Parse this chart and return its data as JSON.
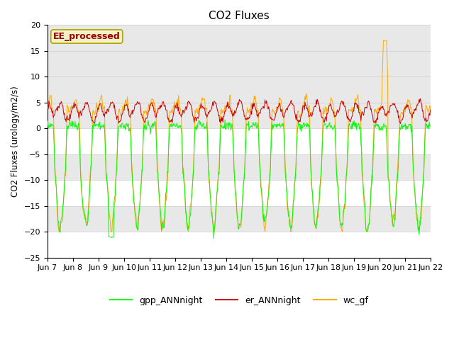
{
  "title": "CO2 Fluxes",
  "ylabel": "CO2 Fluxes (urology/m2/s)",
  "xlabel": "",
  "ylim": [
    -25,
    20
  ],
  "yticks": [
    -25,
    -20,
    -15,
    -10,
    -5,
    0,
    5,
    10,
    15,
    20
  ],
  "date_labels": [
    "Jun 7",
    "Jun 8",
    "Jun 9",
    "Jun 10",
    "Jun 11",
    "Jun 12",
    "Jun 13",
    "Jun 14",
    "Jun 15",
    "Jun 16",
    "Jun 17",
    "Jun 18",
    "Jun 19",
    "Jun 20",
    "Jun 21",
    "Jun 22"
  ],
  "legend_labels": [
    "gpp_ANNnight",
    "er_ANNnight",
    "wc_gf"
  ],
  "line_colors": [
    "#00ff00",
    "#cc0000",
    "#ffaa00"
  ],
  "annotation_text": "EE_processed",
  "annotation_color": "#990000",
  "annotation_bg": "#f5f0c8",
  "annotation_border": "#aaa800",
  "background_color": "#ffffff",
  "band_color": "#e8e8e8",
  "grid_color": "#cccccc",
  "n_points": 720,
  "n_days": 15
}
